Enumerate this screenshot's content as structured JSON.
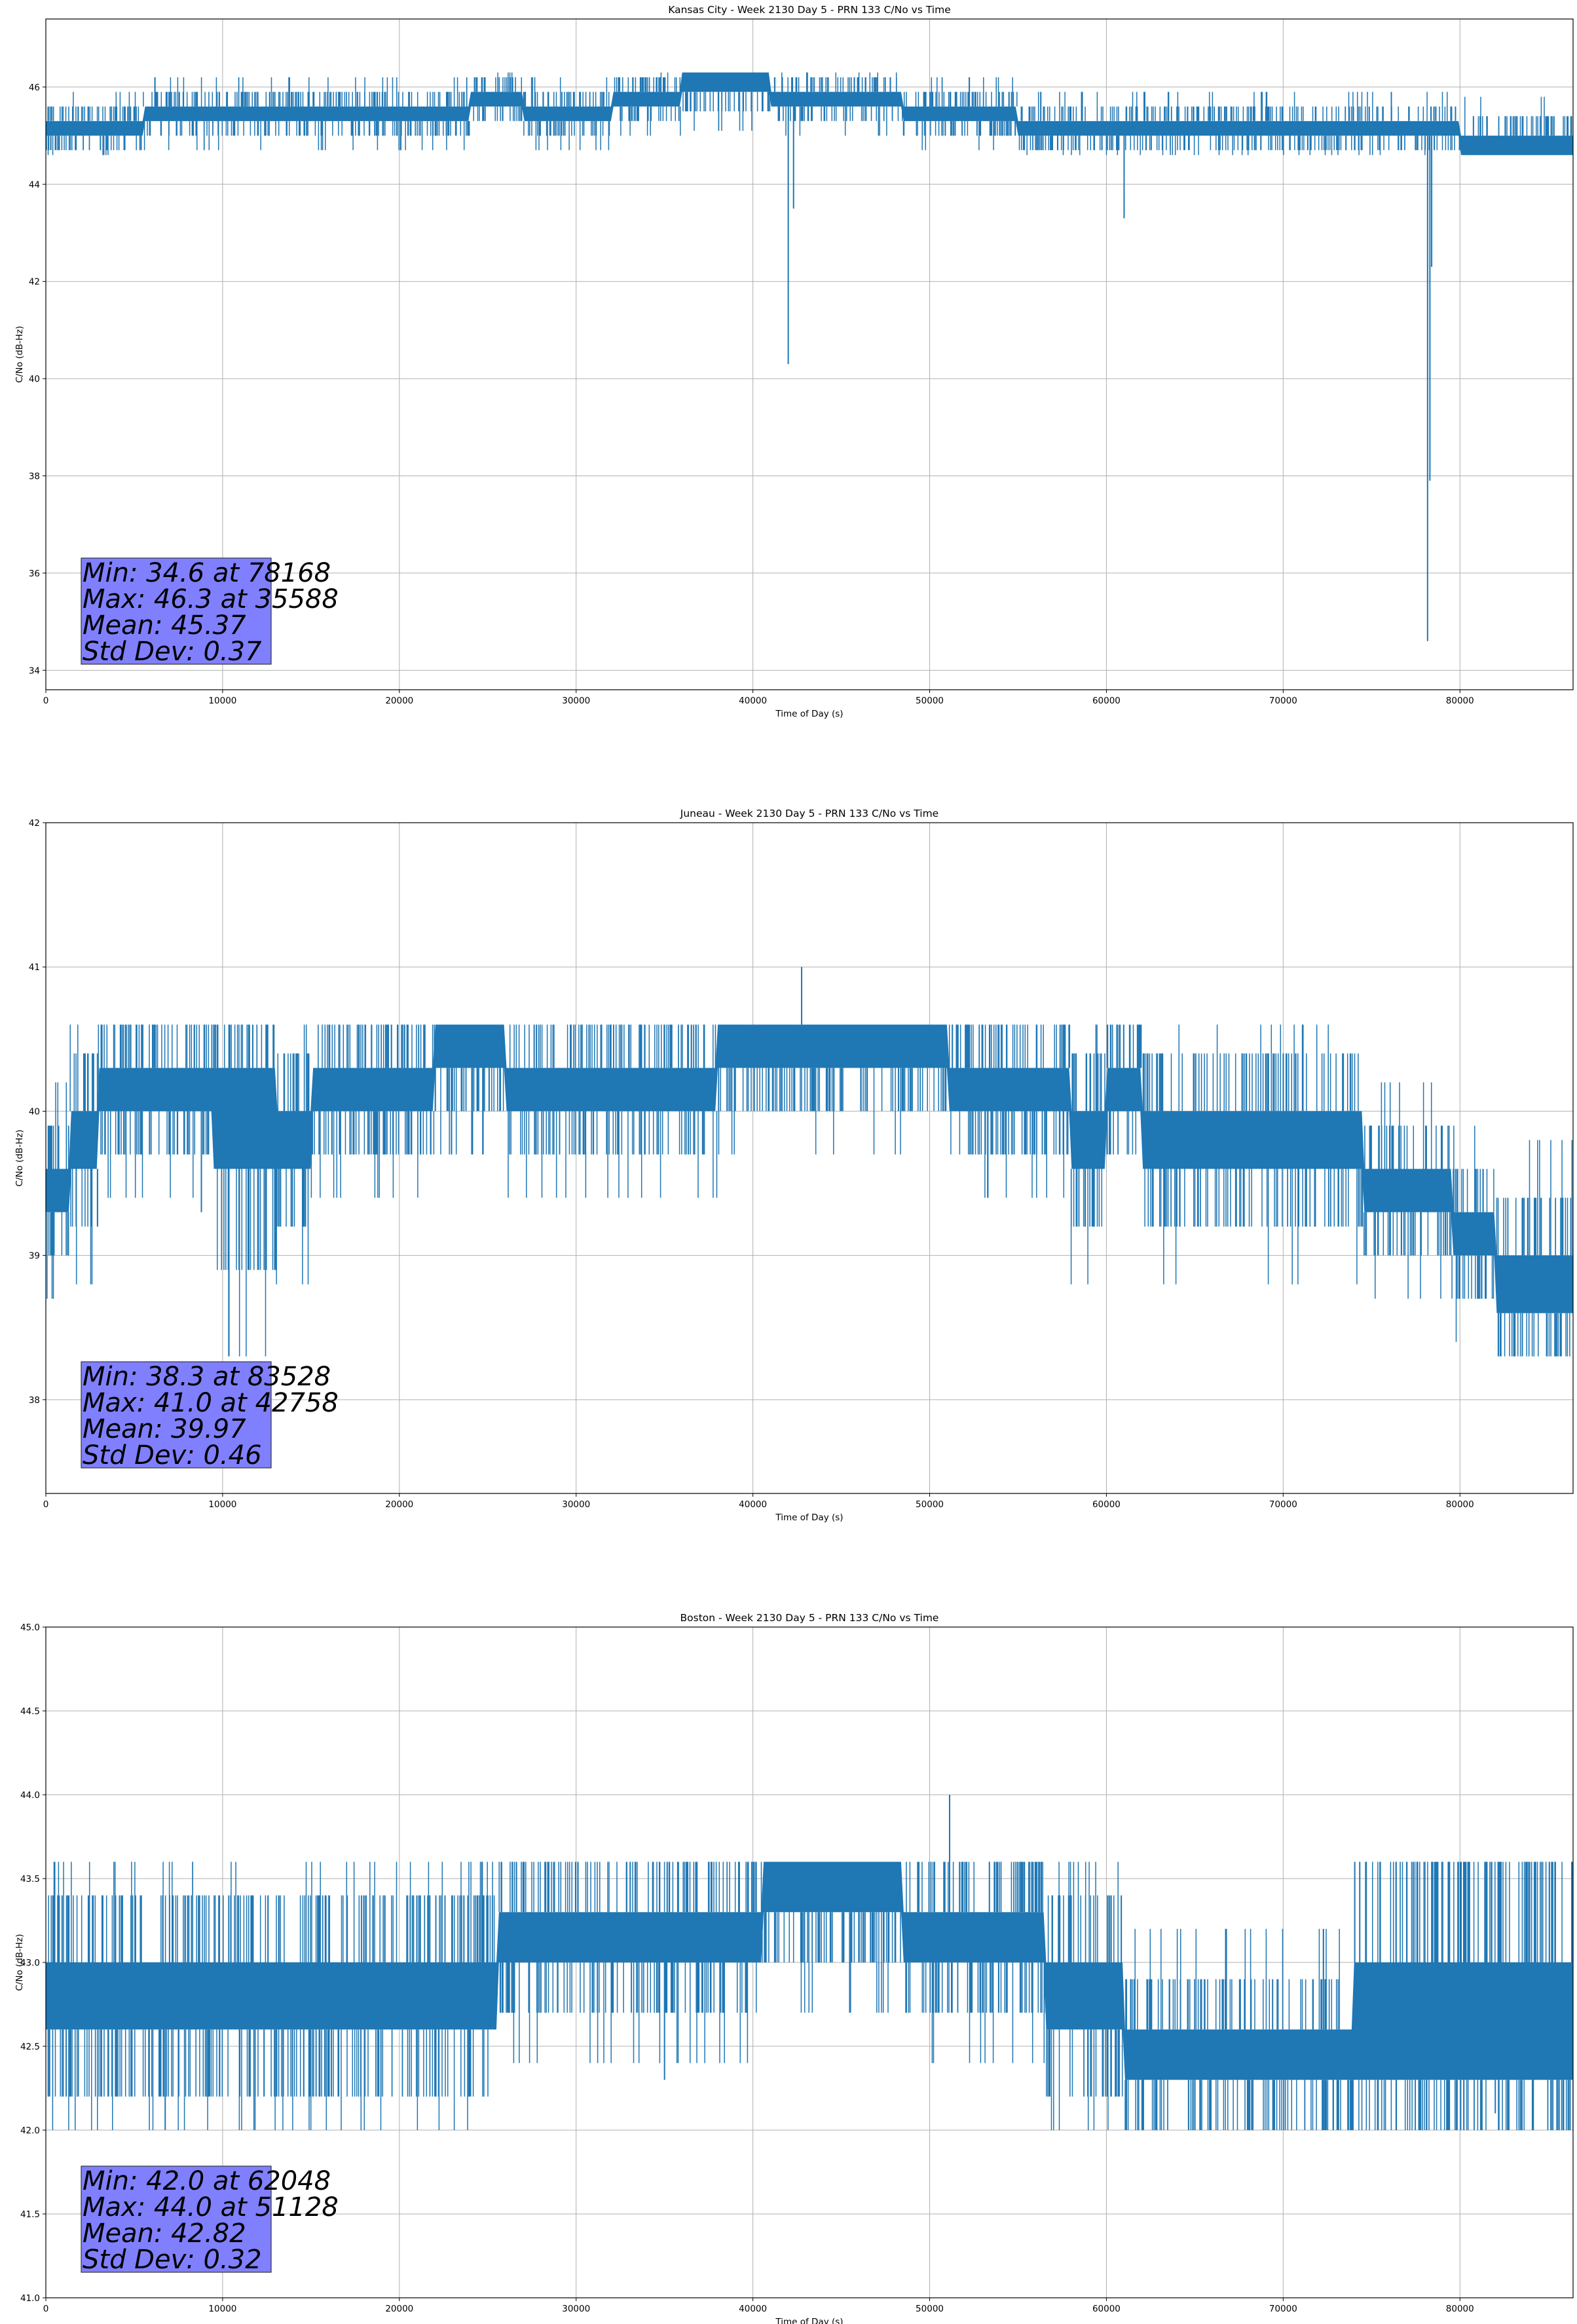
{
  "chart_data": [
    {
      "type": "line",
      "title": "Kansas City - Week 2130 Day 5 - PRN 133 C/No vs Time",
      "xlabel": "Time of Day (s)",
      "ylabel": "C/No (dB-Hz)",
      "xlim": [
        0,
        86400
      ],
      "ylim": [
        33.6,
        47.4
      ],
      "xticks": [
        0,
        10000,
        20000,
        30000,
        40000,
        50000,
        60000,
        70000,
        80000
      ],
      "yticks": [
        34,
        36,
        38,
        40,
        42,
        44,
        46
      ],
      "grid": true,
      "color": "#1f77b4",
      "stats": [
        "Min: 34.6 at 78168",
        "Max: 46.3 at 35588",
        "Mean: 45.37",
        "Std Dev: 0.37"
      ],
      "stats_box_color": "#8080ff",
      "series": [
        {
          "band": [
            [
              0,
              45.0,
              45.3
            ],
            [
              5500,
              45.3,
              45.6
            ],
            [
              24000,
              45.6,
              45.9
            ],
            [
              27000,
              45.3,
              45.6
            ],
            [
              32000,
              45.6,
              45.9
            ],
            [
              36000,
              45.9,
              46.3
            ],
            [
              41000,
              45.6,
              45.9
            ],
            [
              47000,
              45.6,
              45.9
            ],
            [
              48500,
              45.3,
              45.6
            ],
            [
              55000,
              45.0,
              45.3
            ],
            [
              78500,
              45.0,
              45.3
            ],
            [
              80000,
              44.6,
              45.0
            ],
            [
              86400,
              44.6,
              45.0
            ]
          ],
          "spikes": [
            [
              42000,
              40.3
            ],
            [
              42300,
              43.5
            ],
            [
              61000,
              43.3
            ],
            [
              78168,
              34.6
            ],
            [
              78300,
              37.9
            ],
            [
              78400,
              42.3
            ]
          ],
          "jitter_range": [
            44.6,
            46.3
          ],
          "summary": {
            "min": 34.6,
            "min_at": 78168,
            "max": 46.3,
            "max_at": 35588,
            "mean": 45.37,
            "std": 0.37
          }
        }
      ]
    },
    {
      "type": "line",
      "title": "Juneau - Week 2130 Day 5 - PRN 133 C/No vs Time",
      "xlabel": "Time of Day (s)",
      "ylabel": "C/No (dB-Hz)",
      "xlim": [
        0,
        86400
      ],
      "ylim": [
        37.35,
        42.0
      ],
      "xticks": [
        0,
        10000,
        20000,
        30000,
        40000,
        50000,
        60000,
        70000,
        80000
      ],
      "yticks": [
        38,
        39,
        40,
        41,
        42
      ],
      "grid": true,
      "color": "#1f77b4",
      "stats": [
        "Min: 38.3 at 83528",
        "Max: 41.0 at 42758",
        "Mean: 39.97",
        "Std Dev: 0.46"
      ],
      "stats_box_color": "#8080ff",
      "series": [
        {
          "band": [
            [
              0,
              39.3,
              39.6
            ],
            [
              500,
              39.3,
              39.6
            ],
            [
              1300,
              39.6,
              40.0
            ],
            [
              3000,
              40.0,
              40.3
            ],
            [
              8000,
              40.0,
              40.3
            ],
            [
              9500,
              39.6,
              40.3
            ],
            [
              13000,
              39.6,
              40.0
            ],
            [
              15000,
              40.0,
              40.3
            ],
            [
              18000,
              40.0,
              40.3
            ],
            [
              22000,
              40.3,
              40.6
            ],
            [
              26000,
              40.0,
              40.3
            ],
            [
              38000,
              40.3,
              40.6
            ],
            [
              50000,
              40.3,
              40.6
            ],
            [
              51000,
              40.0,
              40.3
            ],
            [
              58000,
              39.6,
              40.0
            ],
            [
              60000,
              40.0,
              40.3
            ],
            [
              62000,
              39.6,
              40.0
            ],
            [
              74000,
              39.6,
              40.0
            ],
            [
              74500,
              39.3,
              39.6
            ],
            [
              79000,
              39.3,
              39.6
            ],
            [
              79500,
              39.0,
              39.3
            ],
            [
              82000,
              38.6,
              39.0
            ],
            [
              86400,
              38.6,
              39.0
            ]
          ],
          "spikes": [
            [
              42758,
              41.0
            ],
            [
              83528,
              38.3
            ],
            [
              400,
              39.0
            ],
            [
              8800,
              39.3
            ]
          ],
          "jitter_range": [
            38.3,
            40.6
          ],
          "summary": {
            "min": 38.3,
            "min_at": 83528,
            "max": 41.0,
            "max_at": 42758,
            "mean": 39.97,
            "std": 0.46
          }
        }
      ]
    },
    {
      "type": "line",
      "title": "Boston - Week 2130 Day 5 - PRN 133 C/No vs Time",
      "xlabel": "Time of Day (s)",
      "ylabel": "C/No (dB-Hz)",
      "xlim": [
        0,
        86400
      ],
      "ylim": [
        41.0,
        45.0
      ],
      "xticks": [
        0,
        10000,
        20000,
        30000,
        40000,
        50000,
        60000,
        70000,
        80000
      ],
      "yticks": [
        41.0,
        41.5,
        42.0,
        42.5,
        43.0,
        43.5,
        44.0,
        44.5,
        45.0
      ],
      "grid": true,
      "color": "#1f77b4",
      "stats": [
        "Min: 42.0 at 62048",
        "Max: 44.0 at 51128",
        "Mean: 42.82",
        "Std Dev: 0.32"
      ],
      "stats_box_color": "#8080ff",
      "series": [
        {
          "band": [
            [
              0,
              42.6,
              43.0
            ],
            [
              18000,
              42.6,
              43.0
            ],
            [
              25000,
              42.6,
              43.0
            ],
            [
              25500,
              43.0,
              43.3
            ],
            [
              33000,
              43.0,
              43.3
            ],
            [
              40000,
              43.0,
              43.3
            ],
            [
              40500,
              43.3,
              43.6
            ],
            [
              48000,
              43.3,
              43.6
            ],
            [
              48500,
              43.0,
              43.3
            ],
            [
              56000,
              43.0,
              43.3
            ],
            [
              56500,
              42.6,
              43.0
            ],
            [
              60000,
              42.6,
              43.0
            ],
            [
              61000,
              42.3,
              42.6
            ],
            [
              73000,
              42.3,
              42.6
            ],
            [
              74000,
              42.3,
              43.0
            ],
            [
              86400,
              42.3,
              43.0
            ]
          ],
          "spikes": [
            [
              51128,
              44.0
            ],
            [
              62048,
              42.0
            ],
            [
              35000,
              42.3
            ],
            [
              82000,
              42.1
            ]
          ],
          "jitter_range": [
            42.0,
            43.6
          ],
          "summary": {
            "min": 42.0,
            "min_at": 62048,
            "max": 44.0,
            "max_at": 51128,
            "mean": 42.82,
            "std": 0.32
          }
        }
      ]
    }
  ]
}
